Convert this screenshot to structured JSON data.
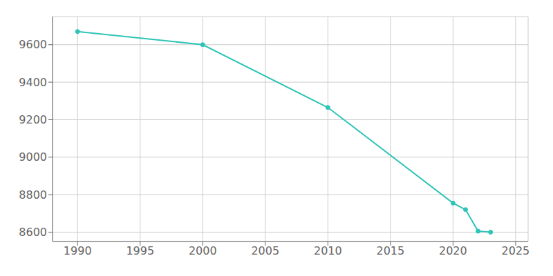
{
  "chart_data": {
    "type": "line",
    "x": [
      1990,
      2000,
      2010,
      2020,
      2021,
      2022,
      2023
    ],
    "values": [
      9670,
      9600,
      9265,
      8755,
      8720,
      8605,
      8600
    ],
    "color": "#2ec4b6",
    "marker": "o",
    "xlim": [
      1988,
      2026
    ],
    "ylim": [
      8550,
      9750
    ],
    "xticks": [
      1990,
      1995,
      2000,
      2005,
      2010,
      2015,
      2020,
      2025
    ],
    "yticks": [
      8600,
      8800,
      9000,
      9200,
      9400,
      9600
    ],
    "grid": true
  }
}
